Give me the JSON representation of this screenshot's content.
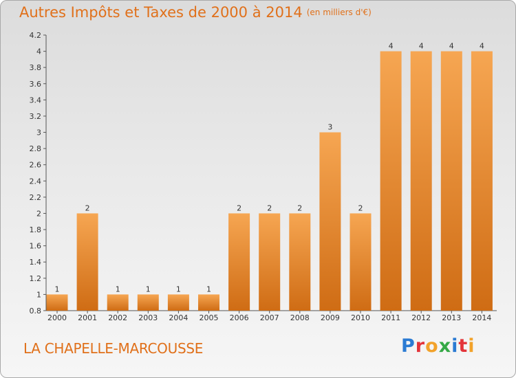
{
  "header": {
    "title": "Autres Impôts et Taxes de 2000 à 2014",
    "unit": "(en milliers d'€)"
  },
  "footer": {
    "commune": "LA CHAPELLE-MARCOUSSE",
    "logo": [
      "P",
      "r",
      "o",
      "x",
      "i",
      "t",
      "i"
    ]
  },
  "colors": {
    "title": "#e0701a",
    "bar_light": "#f6a652",
    "bar_dark": "#cf6c14"
  },
  "chart_data": {
    "type": "bar",
    "title": "Autres Impôts et Taxes de 2000 à 2014",
    "categories": [
      "2000",
      "2001",
      "2002",
      "2003",
      "2004",
      "2005",
      "2006",
      "2007",
      "2008",
      "2009",
      "2010",
      "2011",
      "2012",
      "2013",
      "2014"
    ],
    "values": [
      1,
      2,
      1,
      1,
      1,
      1,
      2,
      2,
      2,
      3,
      2,
      4,
      4,
      4,
      4
    ],
    "data_labels": [
      "1",
      "2",
      "1",
      "1",
      "1",
      "1",
      "2",
      "2",
      "2",
      "3",
      "2",
      "4",
      "4",
      "4",
      "4"
    ],
    "yticks": [
      "0.8",
      "1",
      "1.2",
      "1.4",
      "1.6",
      "1.8",
      "2",
      "2.2",
      "2.4",
      "2.6",
      "2.8",
      "3",
      "3.2",
      "3.4",
      "3.6",
      "3.8",
      "4",
      "4.2"
    ],
    "ylim": [
      0.8,
      4.2
    ],
    "grid": false,
    "legend": "none"
  }
}
